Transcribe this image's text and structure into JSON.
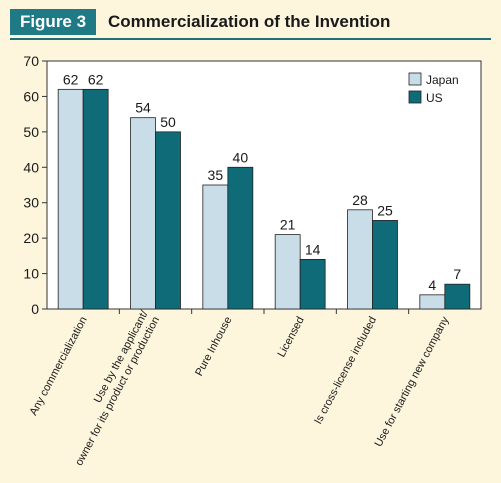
{
  "figure": {
    "badge": "Figure 3",
    "title": "Commercialization of the Invention"
  },
  "colors": {
    "background": "#fdf6dd",
    "plot_background": "#ffffff",
    "japan": "#c9dde8",
    "us": "#0f6b78",
    "accent": "#1f7a86"
  },
  "chart_data": {
    "type": "bar",
    "categories": [
      [
        "Any commercialization"
      ],
      [
        "Use by the applicant/",
        "owner for its product or production"
      ],
      [
        "Pure Inhouse"
      ],
      [
        "Licensed"
      ],
      [
        "Is cross-license included"
      ],
      [
        "Use for starting new company"
      ]
    ],
    "series": [
      {
        "name": "Japan",
        "values": [
          62,
          54,
          35,
          21,
          28,
          4
        ]
      },
      {
        "name": "US",
        "values": [
          62,
          50,
          40,
          14,
          25,
          7
        ]
      }
    ],
    "ylim": [
      0,
      70
    ],
    "yticks": [
      0,
      10,
      20,
      30,
      40,
      50,
      60,
      70
    ],
    "legend_position": "top-right",
    "grid": false
  }
}
